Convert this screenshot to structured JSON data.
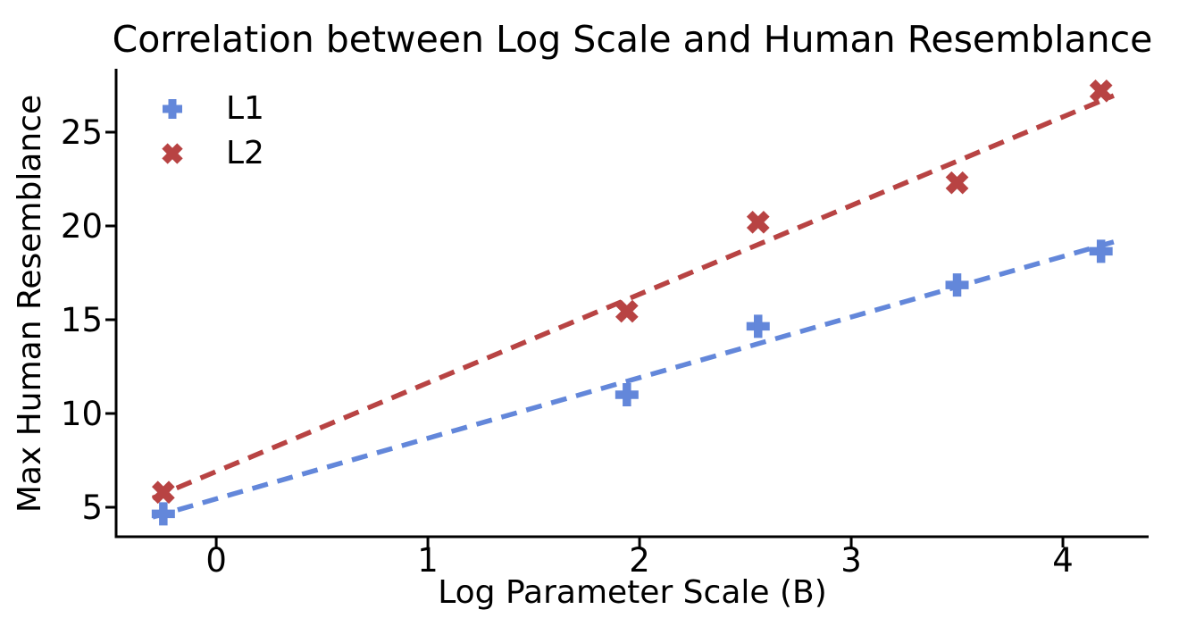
{
  "figure": {
    "background": "#ffffff",
    "text_color": "#000000"
  },
  "chart_data": {
    "type": "scatter",
    "title": "Correlation between Log Scale and Human Resemblance",
    "xlabel": "Log Parameter Scale (B)",
    "ylabel": "Max Human Resemblance",
    "xlim": [
      -0.473,
      4.405
    ],
    "ylim": [
      3.429,
      28.381
    ],
    "x_ticks": [
      0,
      1,
      2,
      3,
      4
    ],
    "y_ticks": [
      5,
      10,
      15,
      20,
      25
    ],
    "grid": false,
    "legend_position": "upper-left",
    "axis_color": "#000000",
    "series": [
      {
        "name": "L1",
        "marker": "plus",
        "color": "#6387DA",
        "x": [
          -0.25,
          1.94,
          2.56,
          3.5,
          4.18
        ],
        "y": [
          4.65,
          11.0,
          14.65,
          16.85,
          18.65
        ],
        "trend_line": {
          "style": "dashed",
          "x1": -0.3,
          "y1": 4.48,
          "x2": 4.24,
          "y2": 19.15
        }
      },
      {
        "name": "L2",
        "marker": "x",
        "color": "#B84343",
        "x": [
          -0.25,
          1.94,
          2.56,
          3.5,
          4.18
        ],
        "y": [
          5.8,
          15.45,
          20.2,
          22.3,
          27.2
        ],
        "trend_line": {
          "style": "dashed",
          "x1": -0.3,
          "y1": 5.49,
          "x2": 4.24,
          "y2": 26.95
        }
      }
    ]
  }
}
